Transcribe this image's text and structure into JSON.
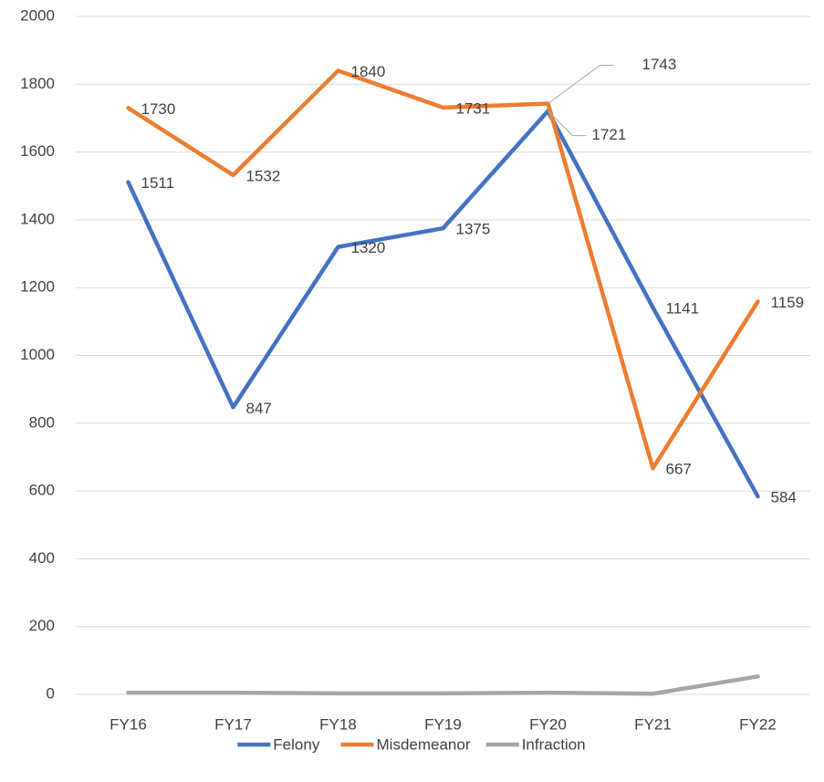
{
  "chart_data": {
    "type": "line",
    "categories": [
      "FY16",
      "FY17",
      "FY18",
      "FY19",
      "FY20",
      "FY21",
      "FY22"
    ],
    "series": [
      {
        "name": "Felony",
        "color": "#4472c4",
        "values": [
          1511,
          847,
          1320,
          1375,
          1721,
          1141,
          584
        ],
        "data_labels": true
      },
      {
        "name": "Misdemeanor",
        "color": "#ed7d31",
        "values": [
          1730,
          1532,
          1840,
          1731,
          1743,
          667,
          1159
        ],
        "data_labels": true
      },
      {
        "name": "Infraction",
        "color": "#a5a5a5",
        "values": [
          5,
          5,
          3,
          3,
          5,
          2,
          53
        ],
        "data_labels": false
      }
    ],
    "ylim": [
      0,
      2000
    ],
    "yticks": [
      0,
      200,
      400,
      600,
      800,
      1000,
      1200,
      1400,
      1600,
      1800,
      2000
    ],
    "grid": true,
    "legend": "bottom"
  }
}
